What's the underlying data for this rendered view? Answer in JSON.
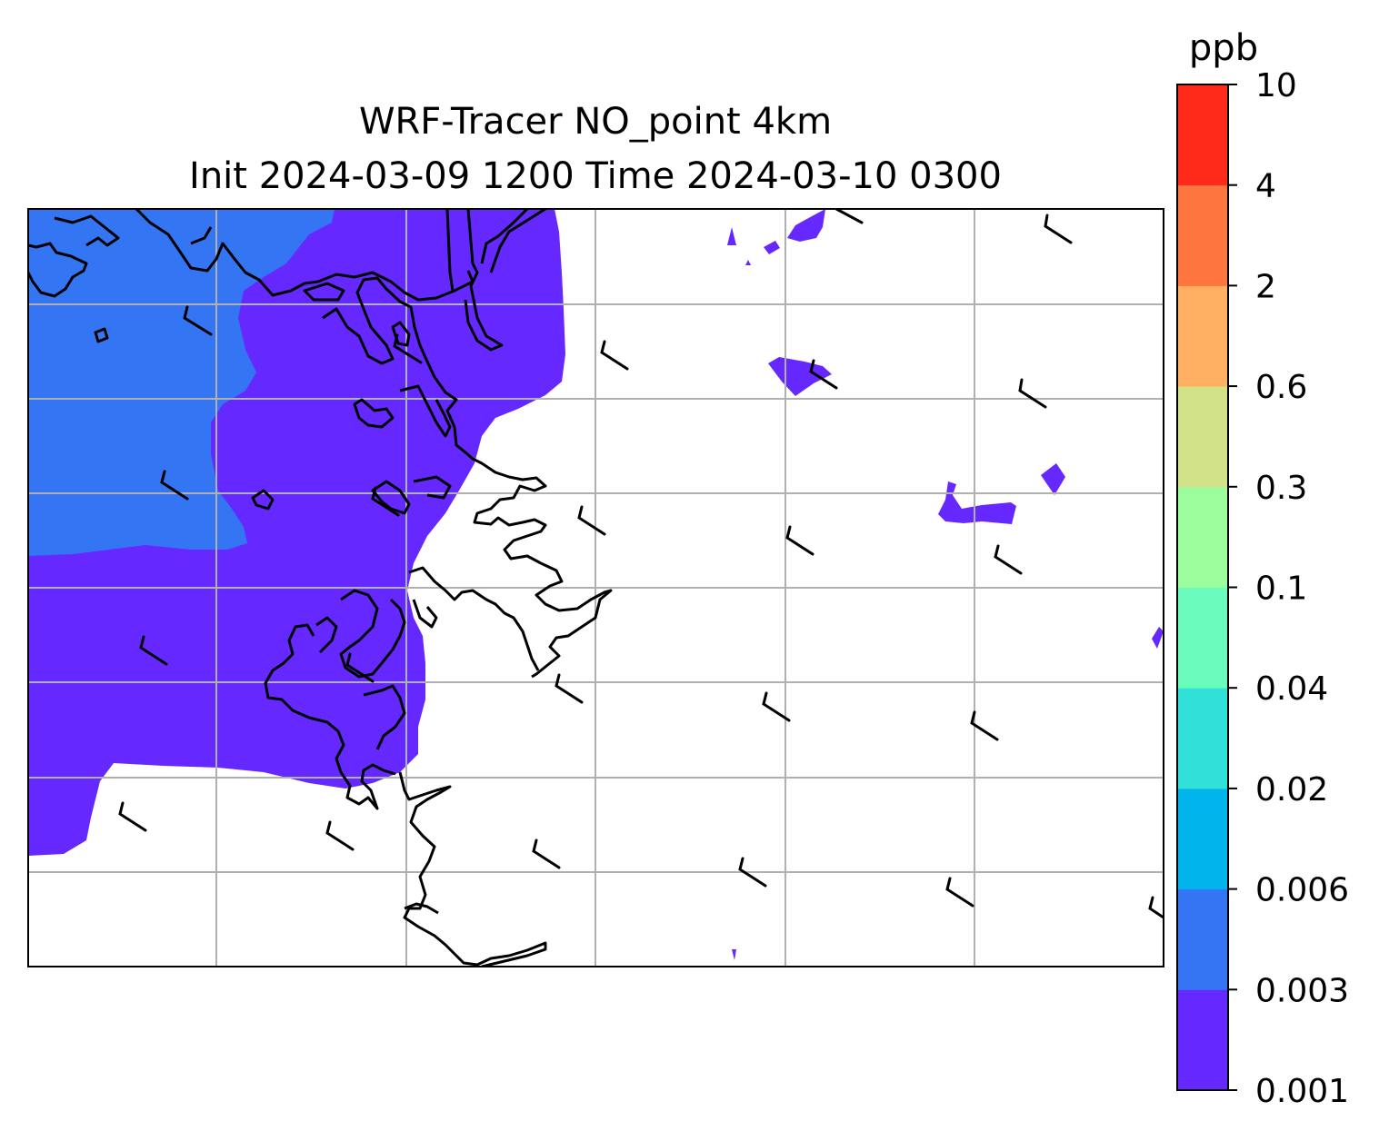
{
  "title": {
    "line1": "WRF-Tracer NO_point 4km",
    "line2": "Init 2024-03-09 1200 Time 2024-03-10 0300"
  },
  "colorbar": {
    "unit": "ppb",
    "levels": [
      "0.001",
      "0.003",
      "0.006",
      "0.02",
      "0.04",
      "0.1",
      "0.3",
      "0.6",
      "2",
      "4",
      "10"
    ],
    "colors": [
      "#6529ff",
      "#3475f4",
      "#02b4ec",
      "#30e1d9",
      "#69fcbc",
      "#9cfd9d",
      "#d2e286",
      "#ffb063",
      "#ff7540",
      "#ff2a1a"
    ]
  },
  "map": {
    "field": "NO_point tracer concentration",
    "wind_barbs": true,
    "coastlines": true,
    "gridlines": true
  }
}
